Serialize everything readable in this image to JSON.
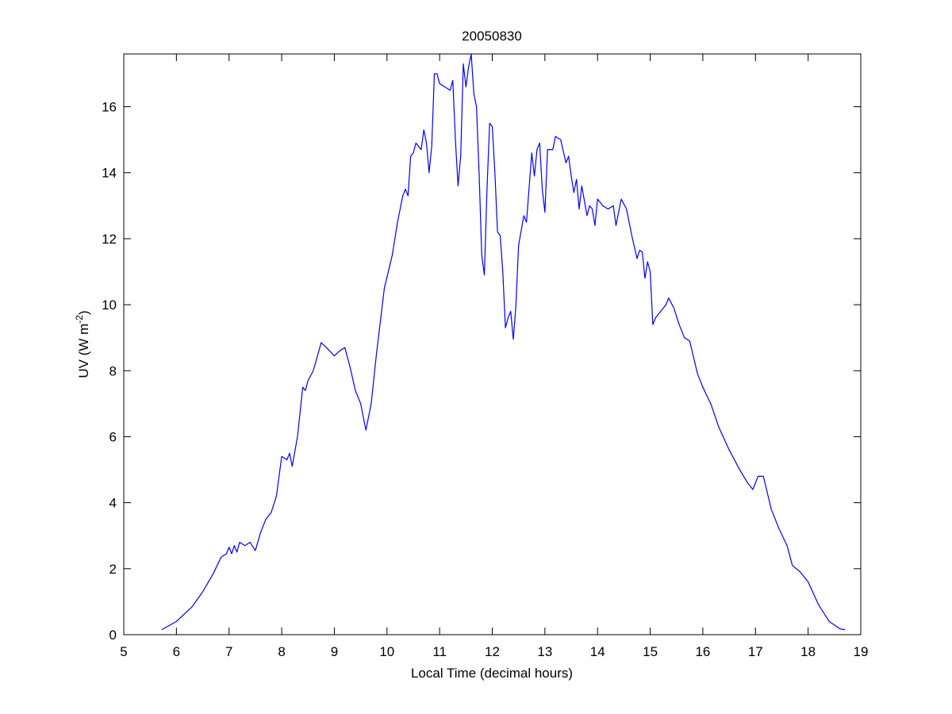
{
  "chart_data": {
    "type": "line",
    "title": "20050830",
    "x_label": "Local Time (decimal hours)",
    "y_label": {
      "text": "UV (W m",
      "superscript": "-2",
      "suffix": ")"
    },
    "color": "#0000ff",
    "xlim": [
      5,
      19
    ],
    "xticks": [
      5,
      6,
      7,
      8,
      9,
      10,
      11,
      12,
      13,
      14,
      15,
      16,
      17,
      18,
      19
    ],
    "ylim": [
      0,
      17.6
    ],
    "yticks": [
      0,
      2,
      4,
      6,
      8,
      10,
      12,
      14,
      16
    ],
    "x": [
      5.72,
      6.0,
      6.3,
      6.5,
      6.7,
      6.85,
      6.95,
      7.0,
      7.05,
      7.1,
      7.15,
      7.2,
      7.3,
      7.4,
      7.5,
      7.6,
      7.7,
      7.8,
      7.9,
      8.0,
      8.1,
      8.15,
      8.2,
      8.3,
      8.4,
      8.45,
      8.5,
      8.6,
      8.75,
      8.85,
      9.0,
      9.1,
      9.2,
      9.3,
      9.4,
      9.5,
      9.6,
      9.7,
      9.8,
      9.95,
      10.1,
      10.2,
      10.3,
      10.35,
      10.4,
      10.45,
      10.5,
      10.55,
      10.65,
      10.7,
      10.75,
      10.8,
      10.85,
      10.9,
      10.95,
      11.0,
      11.1,
      11.2,
      11.25,
      11.3,
      11.35,
      11.4,
      11.45,
      11.5,
      11.55,
      11.6,
      11.65,
      11.7,
      11.75,
      11.8,
      11.85,
      11.9,
      11.95,
      12.0,
      12.05,
      12.1,
      12.15,
      12.2,
      12.25,
      12.3,
      12.35,
      12.4,
      12.45,
      12.5,
      12.6,
      12.65,
      12.75,
      12.8,
      12.85,
      12.9,
      12.95,
      13.0,
      13.05,
      13.1,
      13.15,
      13.2,
      13.3,
      13.4,
      13.45,
      13.5,
      13.55,
      13.6,
      13.65,
      13.7,
      13.8,
      13.85,
      13.9,
      13.95,
      14.0,
      14.1,
      14.2,
      14.3,
      14.35,
      14.45,
      14.55,
      14.65,
      14.75,
      14.8,
      14.85,
      14.9,
      14.95,
      15.0,
      15.05,
      15.1,
      15.2,
      15.3,
      15.35,
      15.45,
      15.55,
      15.65,
      15.75,
      15.9,
      16.0,
      16.15,
      16.3,
      16.5,
      16.7,
      16.85,
      16.95,
      17.05,
      17.15,
      17.3,
      17.45,
      17.6,
      17.7,
      17.85,
      18.0,
      18.2,
      18.4,
      18.6,
      18.7
    ],
    "values": [
      0.15,
      0.4,
      0.85,
      1.3,
      1.85,
      2.35,
      2.45,
      2.65,
      2.45,
      2.7,
      2.5,
      2.8,
      2.7,
      2.8,
      2.55,
      3.1,
      3.5,
      3.7,
      4.2,
      5.4,
      5.3,
      5.5,
      5.1,
      6.0,
      7.5,
      7.4,
      7.7,
      8.0,
      8.85,
      8.7,
      8.45,
      8.6,
      8.7,
      8.1,
      7.4,
      7.0,
      6.2,
      7.0,
      8.5,
      10.5,
      11.5,
      12.5,
      13.3,
      13.5,
      13.3,
      14.5,
      14.6,
      14.9,
      14.7,
      15.3,
      14.9,
      14.0,
      14.8,
      17.0,
      17.0,
      16.7,
      16.6,
      16.5,
      16.8,
      15.0,
      13.6,
      14.5,
      17.3,
      16.6,
      17.2,
      17.6,
      16.4,
      16.0,
      14.0,
      11.5,
      10.9,
      13.5,
      15.5,
      15.4,
      14.0,
      12.2,
      12.1,
      11.0,
      9.3,
      9.6,
      9.8,
      8.95,
      10.0,
      11.8,
      12.7,
      12.5,
      14.6,
      13.9,
      14.7,
      14.9,
      13.5,
      12.8,
      14.7,
      14.7,
      14.7,
      15.1,
      15.0,
      14.3,
      14.5,
      13.9,
      13.4,
      13.8,
      12.9,
      13.6,
      12.7,
      13.0,
      12.9,
      12.4,
      13.2,
      13.0,
      12.9,
      13.0,
      12.4,
      13.2,
      12.9,
      12.1,
      11.4,
      11.65,
      11.6,
      10.8,
      11.3,
      11.0,
      9.4,
      9.6,
      9.8,
      10.0,
      10.2,
      9.9,
      9.4,
      9.0,
      8.9,
      7.9,
      7.5,
      7.0,
      6.3,
      5.6,
      5.0,
      4.6,
      4.4,
      4.8,
      4.8,
      3.8,
      3.2,
      2.7,
      2.1,
      1.9,
      1.6,
      0.9,
      0.4,
      0.18,
      0.15
    ]
  }
}
